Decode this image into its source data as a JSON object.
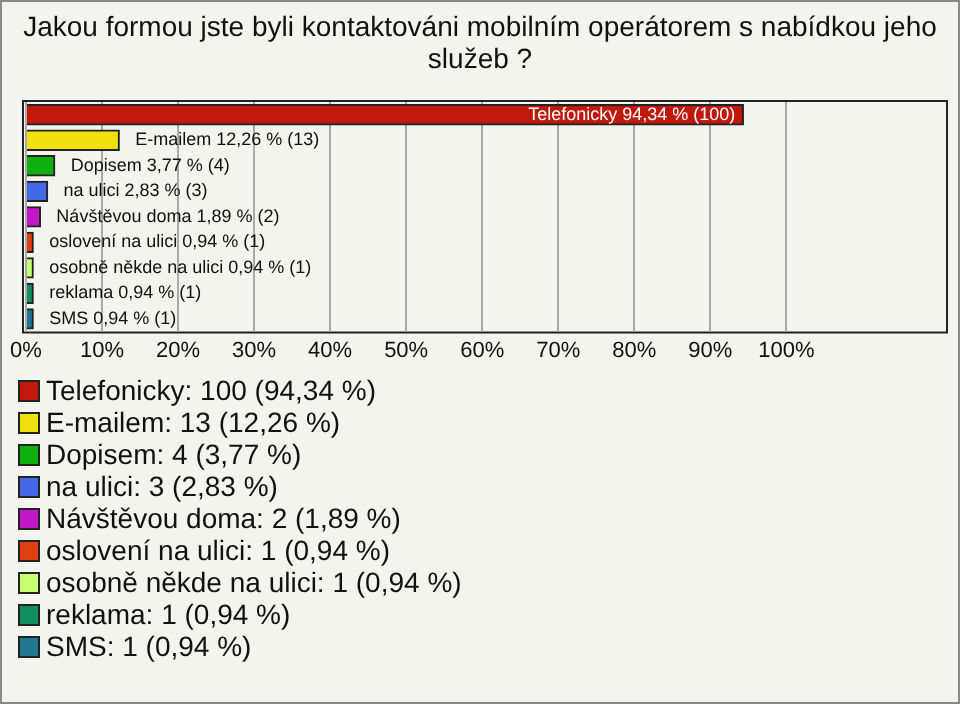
{
  "chart_data": {
    "type": "bar",
    "orientation": "horizontal",
    "title": "Jakou formou jste byli kontaktováni mobilním operátorem s nabídkou jeho služeb ?",
    "categories": [
      null,
      null,
      null,
      null,
      null,
      null,
      null,
      null,
      null
    ],
    "values": [
      94.34,
      12.26,
      3.77,
      2.83,
      1.89,
      0.94,
      0.94,
      0.94,
      0.94
    ],
    "colors": [
      "#c0180c",
      "#f0e010",
      "#10b010",
      "#4468e8",
      "#c018c8",
      "#e04010",
      "#c8ff70",
      "#109060",
      "#207890"
    ],
    "value_labels": [
      "Telefonicky 94,34 % (100)",
      "E-mailem 12,26 % (13)",
      "Dopisem 3,77 % (4)",
      "na ulici 2,83 % (3)",
      "Návštěvou doma 1,89 % (2)",
      "oslovení na ulici 0,94 % (1)",
      "osobně někde na ulici 0,94 % (1)",
      "reklama 0,94 % (1)",
      "SMS 0,94 % (1)"
    ],
    "annotations": [
      "Telefonicky: 100 (94,34 %)",
      "E-mailem: 13 (12,26 %)",
      "Dopisem: 4 (3,77 %)",
      "na ulici: 3 (2,83 %)",
      "Návštěvou doma: 2 (1,89 %)",
      "oslovení na ulici: 1 (0,94 %)",
      "osobně někde na ulici: 1 (0,94 %)",
      "reklama: 1 (0,94 %)",
      "SMS: 1 (0,94 %)"
    ],
    "xlim": [
      0,
      121
    ],
    "xticks": [
      {
        "value": 0,
        "label": "0%"
      },
      {
        "value": 10,
        "label": "10%"
      },
      {
        "value": 20,
        "label": "20%"
      },
      {
        "value": 30,
        "label": "30%"
      },
      {
        "value": 40,
        "label": "40%"
      },
      {
        "value": 50,
        "label": "50%"
      },
      {
        "value": 60,
        "label": "60%"
      },
      {
        "value": 70,
        "label": "70%"
      },
      {
        "value": 80,
        "label": "80%"
      },
      {
        "value": 90,
        "label": "90%"
      },
      {
        "value": 100,
        "label": "100%"
      }
    ],
    "grid": "x"
  }
}
